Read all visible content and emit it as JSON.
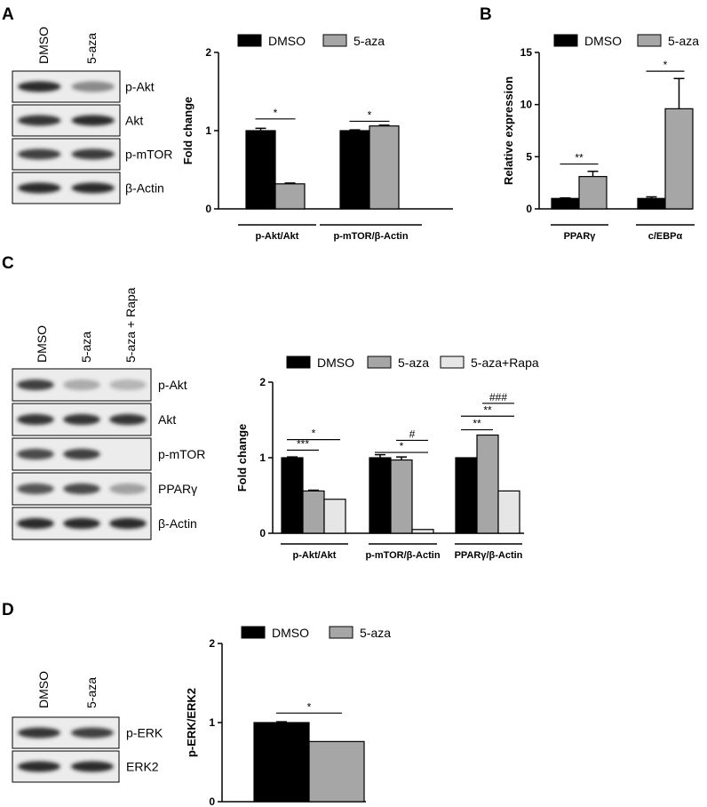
{
  "panel_letters": [
    "A",
    "B",
    "C",
    "D"
  ],
  "blots": {
    "A": {
      "lanes": [
        "DMSO",
        "5-aza"
      ],
      "bands": [
        {
          "label": "p-Akt",
          "int": [
            0.9,
            0.45
          ]
        },
        {
          "label": "Akt",
          "int": [
            0.85,
            0.9
          ]
        },
        {
          "label": "p-mTOR",
          "int": [
            0.8,
            0.82
          ]
        },
        {
          "label": "β-Actin",
          "int": [
            0.9,
            0.9
          ]
        }
      ]
    },
    "C": {
      "lanes": [
        "DMSO",
        "5-aza",
        "5-aza + Rapa"
      ],
      "bands": [
        {
          "label": "p-Akt",
          "int": [
            0.8,
            0.3,
            0.25
          ]
        },
        {
          "label": "Akt",
          "int": [
            0.85,
            0.85,
            0.85
          ]
        },
        {
          "label": "p-mTOR",
          "int": [
            0.75,
            0.8,
            0.0
          ]
        },
        {
          "label": "PPARγ",
          "int": [
            0.7,
            0.75,
            0.35
          ]
        },
        {
          "label": "β-Actin",
          "int": [
            0.9,
            0.9,
            0.9
          ]
        }
      ]
    },
    "D": {
      "lanes": [
        "DMSO",
        "5-aza"
      ],
      "bands": [
        {
          "label": "p-ERK",
          "int": [
            0.85,
            0.8
          ]
        },
        {
          "label": "ERK2",
          "int": [
            0.9,
            0.9
          ]
        }
      ]
    }
  },
  "chart_data": [
    {
      "id": "A",
      "type": "bar",
      "ylabel": "Fold change",
      "ylim": [
        0,
        2
      ],
      "yticks": [
        "0",
        "1",
        "2"
      ],
      "categories": [
        "p-Akt/Akt",
        "p-mTOR/β-Actin"
      ],
      "series": [
        {
          "name": "DMSO",
          "color": "#000000",
          "values": [
            1.0,
            1.0
          ],
          "errors": [
            0.03,
            0.01
          ]
        },
        {
          "name": "5-aza",
          "color": "#a6a6a6",
          "values": [
            0.32,
            1.06
          ],
          "errors": [
            0.01,
            0.01
          ]
        }
      ],
      "significance": [
        {
          "category": 0,
          "from": 0,
          "to": 1,
          "label": "*",
          "y": 1.15
        },
        {
          "category": 1,
          "from": 0,
          "to": 1,
          "label": "*",
          "y": 1.12
        }
      ]
    },
    {
      "id": "B",
      "type": "bar",
      "ylabel": "Relative expression",
      "ylim": [
        0,
        15
      ],
      "yticks": [
        "0",
        "5",
        "10",
        "15"
      ],
      "categories": [
        "PPARγ",
        "c/EBPα"
      ],
      "series": [
        {
          "name": "DMSO",
          "color": "#000000",
          "values": [
            1.0,
            1.0
          ],
          "errors": [
            0.05,
            0.15
          ]
        },
        {
          "name": "5-aza",
          "color": "#a6a6a6",
          "values": [
            3.1,
            9.6
          ],
          "errors": [
            0.5,
            2.9
          ]
        }
      ],
      "significance": [
        {
          "category": 0,
          "from": 0,
          "to": 1,
          "label": "**",
          "y": 4.3
        },
        {
          "category": 1,
          "from": 0,
          "to": 1,
          "label": "*",
          "y": 13.2
        }
      ]
    },
    {
      "id": "C",
      "type": "bar",
      "ylabel": "Fold change",
      "ylim": [
        0,
        2
      ],
      "yticks": [
        "0",
        "1",
        "2"
      ],
      "categories": [
        "p-Akt/Akt",
        "p-mTOR/β-Actin",
        "PPARγ/β-Actin"
      ],
      "series": [
        {
          "name": "DMSO",
          "color": "#000000",
          "values": [
            1.0,
            1.0,
            1.0
          ],
          "errors": [
            0.01,
            0.04,
            0
          ]
        },
        {
          "name": "5-aza",
          "color": "#a6a6a6",
          "values": [
            0.56,
            0.97,
            1.3
          ],
          "errors": [
            0.01,
            0.04,
            0
          ]
        },
        {
          "name": "5-aza+Rapa",
          "color": "#e6e6e6",
          "values": [
            0.45,
            0.05,
            0.56
          ],
          "errors": [
            0,
            0,
            0
          ]
        }
      ],
      "significance": [
        {
          "category": 0,
          "from": 0,
          "to": 1,
          "label": "***",
          "y": 1.1
        },
        {
          "category": 0,
          "from": 0,
          "to": 2,
          "label": "*",
          "y": 1.24
        },
        {
          "category": 1,
          "from": 0,
          "to": 2,
          "label": "*",
          "y": 1.07
        },
        {
          "category": 1,
          "from": 1,
          "to": 2,
          "label": "#",
          "y": 1.23
        },
        {
          "category": 2,
          "from": 0,
          "to": 1,
          "label": "**",
          "y": 1.37
        },
        {
          "category": 2,
          "from": 0,
          "to": 2,
          "label": "**",
          "y": 1.55
        },
        {
          "category": 2,
          "from": 1,
          "to": 2,
          "label": "###",
          "y": 1.72
        }
      ]
    },
    {
      "id": "D",
      "type": "bar",
      "ylabel": "p-ERK/ERK2",
      "ylim": [
        0,
        2
      ],
      "yticks": [
        "0",
        "1",
        "2"
      ],
      "categories": [
        ""
      ],
      "series": [
        {
          "name": "DMSO",
          "color": "#000000",
          "values": [
            1.0
          ],
          "errors": [
            0.01
          ]
        },
        {
          "name": "5-aza",
          "color": "#a6a6a6",
          "values": [
            0.76
          ],
          "errors": [
            0
          ]
        }
      ],
      "significance": [
        {
          "category": 0,
          "from": 0,
          "to": 1,
          "label": "*",
          "y": 1.12
        }
      ]
    }
  ]
}
